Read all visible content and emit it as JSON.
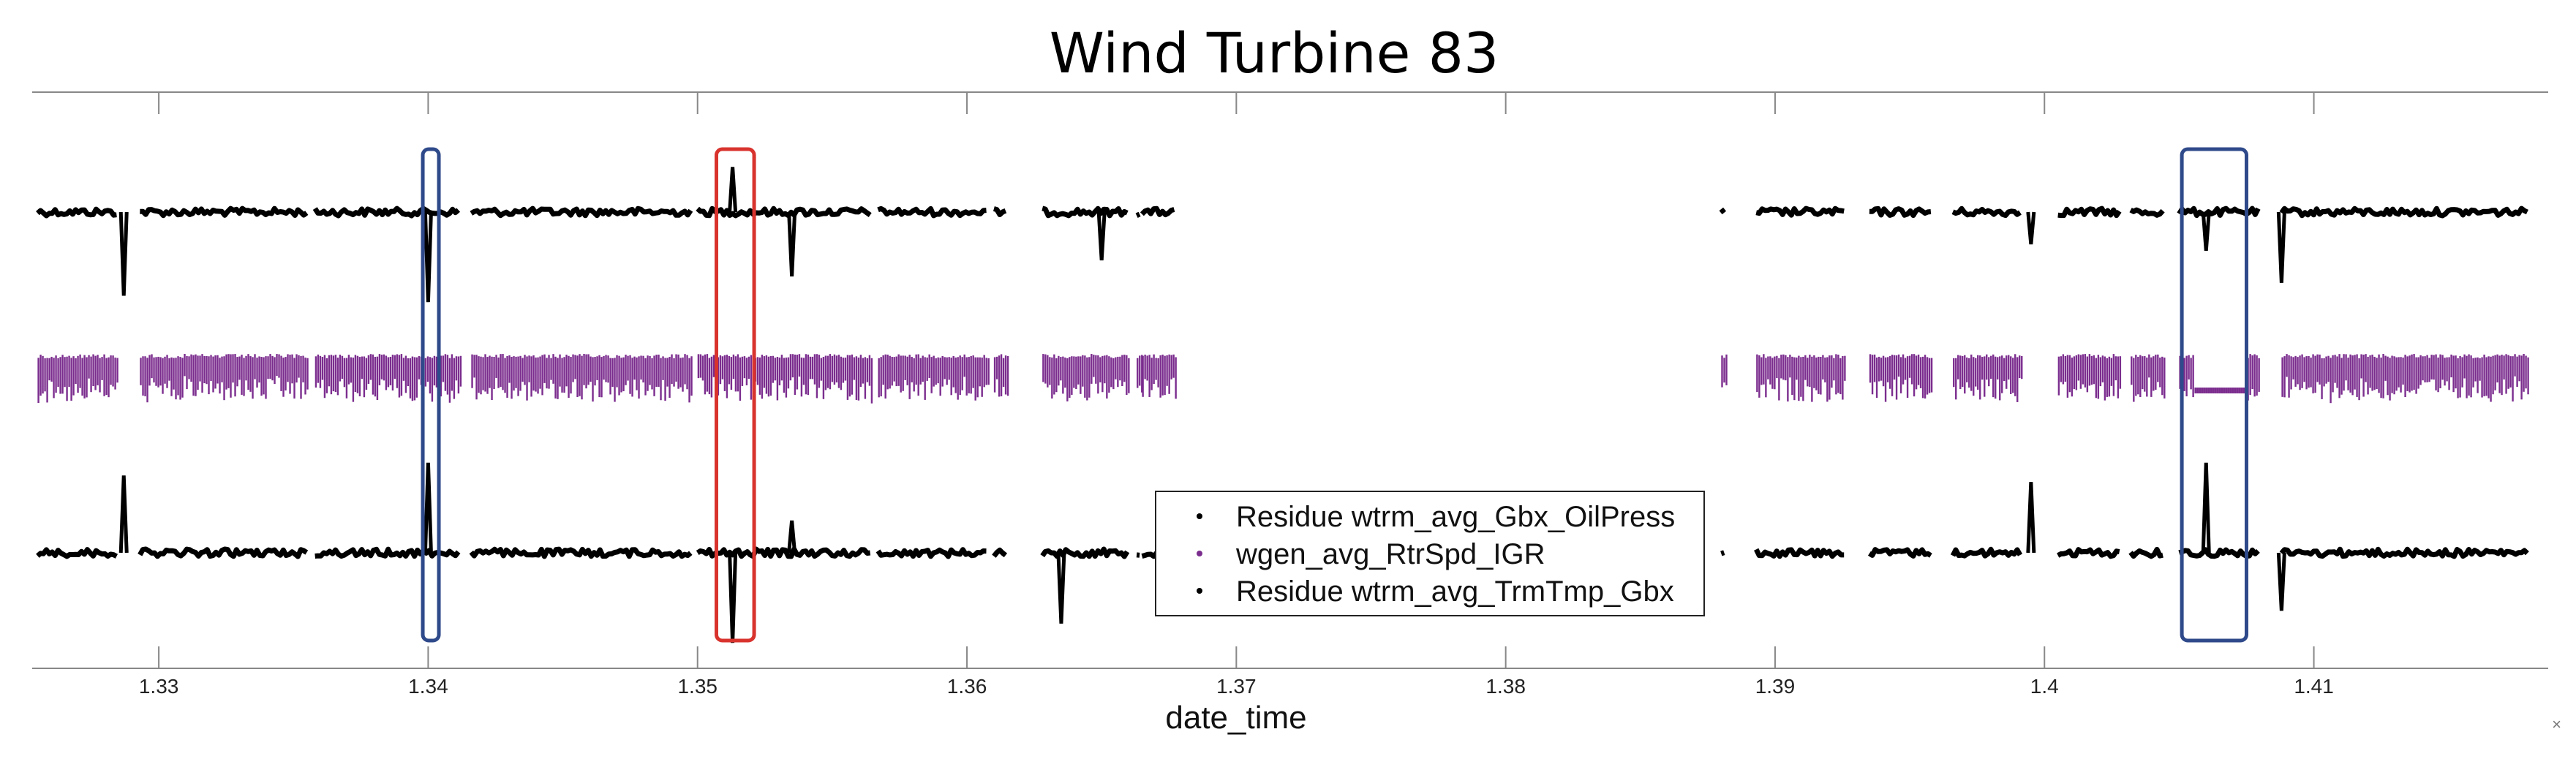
{
  "chart_data": {
    "type": "scatter",
    "title": "Wind Turbine 83",
    "xlabel": "date_time",
    "ylabel": "",
    "xlim": [
      1.3253,
      1.4187
    ],
    "xticks": [
      1.33,
      1.34,
      1.35,
      1.36,
      1.37,
      1.38,
      1.39,
      1.4,
      1.41
    ],
    "xtick_labels": [
      "1.33",
      "1.34",
      "1.35",
      "1.36",
      "1.37",
      "1.38",
      "1.39",
      "1.4",
      "1.41"
    ],
    "grid": false,
    "legend_position": "bottom-center",
    "series": [
      {
        "name": "Residue wtrm_avg_Gbx_OilPress",
        "color": "#000000",
        "band": "top",
        "segments": [
          [
            1.3255,
            1.3285
          ],
          [
            1.3293,
            1.3355
          ],
          [
            1.3358,
            1.3412
          ],
          [
            1.3416,
            1.3498
          ],
          [
            1.35,
            1.3565
          ],
          [
            1.3567,
            1.3608
          ],
          [
            1.361,
            1.3615
          ],
          [
            1.3628,
            1.366
          ],
          [
            1.3663,
            1.3665
          ],
          [
            1.3665,
            1.3678
          ],
          [
            1.388,
            1.3882
          ],
          [
            1.3893,
            1.3926
          ],
          [
            1.3935,
            1.3958
          ],
          [
            1.3966,
            1.3992
          ],
          [
            1.4005,
            1.4028
          ],
          [
            1.4032,
            1.4045
          ],
          [
            1.405,
            1.408
          ],
          [
            1.4088,
            1.418
          ]
        ],
        "spikes": [
          {
            "x": 1.3287,
            "y": -2.6
          },
          {
            "x": 1.34,
            "y": -2.8
          },
          {
            "x": 1.3513,
            "y": 1.4
          },
          {
            "x": 1.3535,
            "y": -2.0
          },
          {
            "x": 1.365,
            "y": -1.5
          },
          {
            "x": 1.3995,
            "y": -1.0
          },
          {
            "x": 1.406,
            "y": -1.2
          },
          {
            "x": 1.4088,
            "y": -2.2
          }
        ]
      },
      {
        "name": "wgen_avg_RtrSpd_IGR",
        "color": "#7b2d8e",
        "band": "middle",
        "segments": [
          [
            1.3255,
            1.3285
          ],
          [
            1.3293,
            1.3355
          ],
          [
            1.3358,
            1.3412
          ],
          [
            1.3416,
            1.3498
          ],
          [
            1.35,
            1.3565
          ],
          [
            1.3567,
            1.3608
          ],
          [
            1.361,
            1.3615
          ],
          [
            1.3628,
            1.366
          ],
          [
            1.3663,
            1.3665
          ],
          [
            1.3665,
            1.3678
          ],
          [
            1.388,
            1.3882
          ],
          [
            1.3893,
            1.3926
          ],
          [
            1.3935,
            1.3958
          ],
          [
            1.3966,
            1.3992
          ],
          [
            1.4005,
            1.4028
          ],
          [
            1.4032,
            1.4045
          ],
          [
            1.405,
            1.408
          ],
          [
            1.4088,
            1.418
          ]
        ],
        "flat_interval": [
          1.4055,
          1.4075
        ]
      },
      {
        "name": "Residue wtrm_avg_TrmTmp_Gbx",
        "color": "#000000",
        "band": "bottom",
        "segments": [
          [
            1.3255,
            1.3285
          ],
          [
            1.3293,
            1.3355
          ],
          [
            1.3358,
            1.3412
          ],
          [
            1.3416,
            1.3498
          ],
          [
            1.35,
            1.3565
          ],
          [
            1.3567,
            1.3608
          ],
          [
            1.361,
            1.3615
          ],
          [
            1.3628,
            1.366
          ],
          [
            1.3663,
            1.3665
          ],
          [
            1.3665,
            1.3678
          ],
          [
            1.388,
            1.3882
          ],
          [
            1.3893,
            1.3926
          ],
          [
            1.3935,
            1.3958
          ],
          [
            1.3966,
            1.3992
          ],
          [
            1.4005,
            1.4028
          ],
          [
            1.4032,
            1.4045
          ],
          [
            1.405,
            1.408
          ],
          [
            1.4088,
            1.418
          ]
        ],
        "spikes": [
          {
            "x": 1.3287,
            "y": 2.4
          },
          {
            "x": 1.34,
            "y": 2.8
          },
          {
            "x": 1.3513,
            "y": -2.8
          },
          {
            "x": 1.3535,
            "y": 1.0
          },
          {
            "x": 1.3635,
            "y": -2.2
          },
          {
            "x": 1.3995,
            "y": 2.2
          },
          {
            "x": 1.406,
            "y": 2.8
          },
          {
            "x": 1.4088,
            "y": -1.8
          }
        ]
      }
    ],
    "annotations": [
      {
        "kind": "box",
        "color": "#2f4a8a",
        "x0": 1.3398,
        "x1": 1.3403
      },
      {
        "kind": "box",
        "color": "#d9332e",
        "x0": 1.3507,
        "x1": 1.3521
      },
      {
        "kind": "box",
        "color": "#2f4a8a",
        "x0": 1.4051,
        "x1": 1.4075
      }
    ]
  },
  "ui": {
    "corner_mark": "×"
  }
}
